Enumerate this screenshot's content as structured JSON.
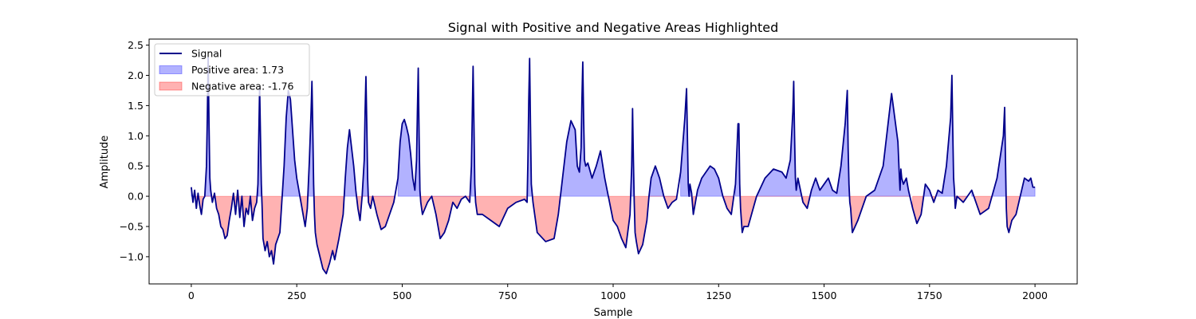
{
  "chart_data": {
    "type": "area",
    "title": "Signal with Positive and Negative Areas Highlighted",
    "xlabel": "Sample",
    "ylabel": "Amplitude",
    "xlim": [
      -100,
      2100
    ],
    "ylim": [
      -1.45,
      2.6
    ],
    "xticks": [
      0,
      250,
      500,
      750,
      1000,
      1250,
      1500,
      1750,
      2000
    ],
    "yticks": [
      -1.0,
      -0.5,
      0.0,
      0.5,
      1.0,
      1.5,
      2.0,
      2.5
    ],
    "xtick_labels": [
      "0",
      "250",
      "500",
      "750",
      "1000",
      "1250",
      "1500",
      "1750",
      "2000"
    ],
    "ytick_labels": [
      "−1.0",
      "−0.5",
      "0.0",
      "0.5",
      "1.0",
      "1.5",
      "2.0",
      "2.5"
    ],
    "grid": false,
    "legend_position": "top-left",
    "legend": [
      {
        "label": "Signal",
        "kind": "line",
        "color": "#00008b"
      },
      {
        "label": "Positive area: 1.73",
        "kind": "patch",
        "color": "#0000ff"
      },
      {
        "label": "Negative area: -1.76",
        "kind": "patch",
        "color": "#ff0000"
      }
    ],
    "colors": {
      "line": "#00008b",
      "positive": "#0000ff",
      "negative": "#ff0000",
      "fill_opacity": 0.3
    },
    "series": [
      {
        "name": "Signal",
        "x": [
          0,
          4,
          8,
          12,
          16,
          20,
          24,
          28,
          32,
          36,
          38,
          40,
          42,
          44,
          46,
          50,
          55,
          60,
          65,
          70,
          75,
          80,
          85,
          90,
          95,
          100,
          105,
          110,
          115,
          120,
          125,
          130,
          135,
          140,
          145,
          150,
          155,
          158,
          160,
          162,
          164,
          166,
          168,
          170,
          175,
          180,
          185,
          190,
          195,
          200,
          210,
          220,
          225,
          230,
          235,
          240,
          245,
          250,
          255,
          260,
          265,
          270,
          275,
          280,
          284,
          286,
          288,
          290,
          292,
          294,
          298,
          305,
          312,
          320,
          328,
          335,
          340,
          350,
          360,
          365,
          370,
          375,
          380,
          385,
          390,
          395,
          400,
          405,
          410,
          412,
          414,
          416,
          418,
          420,
          425,
          430,
          440,
          450,
          460,
          470,
          480,
          490,
          495,
          500,
          505,
          510,
          515,
          520,
          525,
          530,
          534,
          536,
          538,
          540,
          542,
          544,
          548,
          560,
          570,
          580,
          590,
          600,
          610,
          620,
          630,
          640,
          650,
          660,
          664,
          666,
          668,
          670,
          672,
          674,
          678,
          690,
          710,
          730,
          750,
          770,
          790,
          796,
          798,
          800,
          802,
          804,
          806,
          810,
          820,
          840,
          860,
          870,
          880,
          890,
          900,
          910,
          915,
          920,
          924,
          926,
          928,
          930,
          932,
          935,
          940,
          950,
          960,
          970,
          980,
          990,
          1000,
          1010,
          1020,
          1030,
          1040,
          1044,
          1046,
          1048,
          1050,
          1052,
          1055,
          1060,
          1070,
          1080,
          1085,
          1090,
          1100,
          1110,
          1120,
          1130,
          1140,
          1150,
          1160,
          1170,
          1174,
          1176,
          1178,
          1180,
          1182,
          1186,
          1190,
          1200,
          1210,
          1220,
          1230,
          1240,
          1250,
          1260,
          1270,
          1280,
          1290,
          1296,
          1298,
          1300,
          1302,
          1304,
          1306,
          1310,
          1320,
          1340,
          1360,
          1380,
          1400,
          1410,
          1420,
          1426,
          1428,
          1430,
          1432,
          1434,
          1438,
          1450,
          1460,
          1470,
          1480,
          1490,
          1500,
          1510,
          1520,
          1530,
          1540,
          1550,
          1555,
          1557,
          1559,
          1561,
          1563,
          1567,
          1580,
          1600,
          1620,
          1640,
          1660,
          1675,
          1678,
          1680,
          1682,
          1684,
          1688,
          1695,
          1700,
          1710,
          1720,
          1730,
          1740,
          1750,
          1760,
          1770,
          1780,
          1790,
          1800,
          1803,
          1805,
          1807,
          1809,
          1811,
          1815,
          1830,
          1850,
          1870,
          1890,
          1910,
          1925,
          1928,
          1930,
          1932,
          1934,
          1938,
          1945,
          1955,
          1965,
          1975,
          1985,
          1990,
          1995,
          2000
        ],
        "y": [
          0.15,
          -0.1,
          0.1,
          -0.2,
          0.05,
          -0.15,
          -0.3,
          -0.05,
          0.0,
          0.5,
          1.3,
          2.3,
          1.2,
          0.3,
          0.1,
          -0.1,
          0.05,
          -0.2,
          -0.3,
          -0.5,
          -0.55,
          -0.7,
          -0.65,
          -0.4,
          -0.2,
          0.05,
          -0.3,
          0.1,
          -0.35,
          0.0,
          -0.5,
          -0.2,
          -0.3,
          0.0,
          -0.4,
          -0.2,
          -0.1,
          0.2,
          1.0,
          1.8,
          1.0,
          0.2,
          -0.2,
          -0.7,
          -0.9,
          -0.75,
          -1.0,
          -0.9,
          -1.12,
          -0.8,
          -0.6,
          0.5,
          1.3,
          1.75,
          1.6,
          1.1,
          0.6,
          0.3,
          0.1,
          -0.1,
          -0.3,
          -0.5,
          -0.2,
          0.6,
          1.4,
          1.9,
          1.1,
          0.2,
          -0.3,
          -0.6,
          -0.8,
          -1.0,
          -1.2,
          -1.28,
          -1.1,
          -0.9,
          -1.05,
          -0.7,
          -0.3,
          0.3,
          0.8,
          1.1,
          0.8,
          0.5,
          0.1,
          -0.2,
          -0.4,
          0.0,
          0.6,
          1.4,
          1.98,
          1.2,
          0.3,
          -0.1,
          -0.2,
          0.0,
          -0.3,
          -0.55,
          -0.5,
          -0.3,
          -0.1,
          0.3,
          0.9,
          1.2,
          1.27,
          1.15,
          1.0,
          0.7,
          0.3,
          0.1,
          0.6,
          1.4,
          2.12,
          1.0,
          0.1,
          -0.1,
          -0.3,
          -0.1,
          0.0,
          -0.3,
          -0.7,
          -0.6,
          -0.4,
          -0.1,
          -0.2,
          -0.05,
          0.0,
          -0.1,
          0.5,
          1.3,
          2.15,
          1.2,
          0.2,
          -0.1,
          -0.3,
          -0.3,
          -0.4,
          -0.5,
          -0.2,
          -0.1,
          -0.05,
          -0.1,
          0.6,
          1.6,
          2.28,
          1.2,
          0.2,
          -0.1,
          -0.6,
          -0.75,
          -0.7,
          -0.3,
          0.3,
          0.9,
          1.25,
          1.1,
          0.5,
          0.4,
          0.8,
          1.6,
          2.22,
          1.3,
          0.6,
          0.5,
          0.55,
          0.3,
          0.5,
          0.75,
          0.3,
          -0.05,
          -0.4,
          -0.5,
          -0.7,
          -0.85,
          -0.3,
          0.5,
          1.45,
          0.6,
          -0.1,
          -0.6,
          -0.75,
          -0.95,
          -0.8,
          -0.4,
          0.0,
          0.3,
          0.5,
          0.3,
          0.0,
          -0.2,
          -0.1,
          -0.05,
          0.4,
          1.3,
          1.78,
          1.0,
          0.2,
          0.0,
          0.2,
          0.05,
          -0.3,
          0.1,
          0.3,
          0.4,
          0.5,
          0.45,
          0.3,
          0.0,
          -0.2,
          -0.3,
          0.2,
          1.2,
          1.2,
          0.2,
          -0.2,
          -0.4,
          -0.6,
          -0.5,
          -0.5,
          0.0,
          0.3,
          0.45,
          0.4,
          0.3,
          0.6,
          1.4,
          1.9,
          1.0,
          0.3,
          0.1,
          0.3,
          -0.1,
          -0.2,
          0.1,
          0.3,
          0.1,
          0.2,
          0.3,
          0.1,
          0.05,
          0.5,
          1.2,
          1.75,
          0.8,
          0.2,
          -0.1,
          -0.2,
          -0.6,
          -0.4,
          0.0,
          0.1,
          0.5,
          1.7,
          0.9,
          0.4,
          0.1,
          0.45,
          0.3,
          0.2,
          0.3,
          0.1,
          -0.2,
          -0.45,
          -0.3,
          0.2,
          0.1,
          -0.1,
          0.1,
          0.05,
          0.5,
          1.3,
          2.0,
          1.1,
          0.3,
          0.1,
          -0.2,
          0.0,
          -0.1,
          0.1,
          -0.3,
          -0.2,
          0.3,
          1.0,
          1.47,
          0.6,
          -0.2,
          -0.5,
          -0.6,
          -0.4,
          -0.3,
          0.0,
          0.3,
          0.25,
          0.3,
          0.15,
          0.15
        ]
      }
    ]
  }
}
